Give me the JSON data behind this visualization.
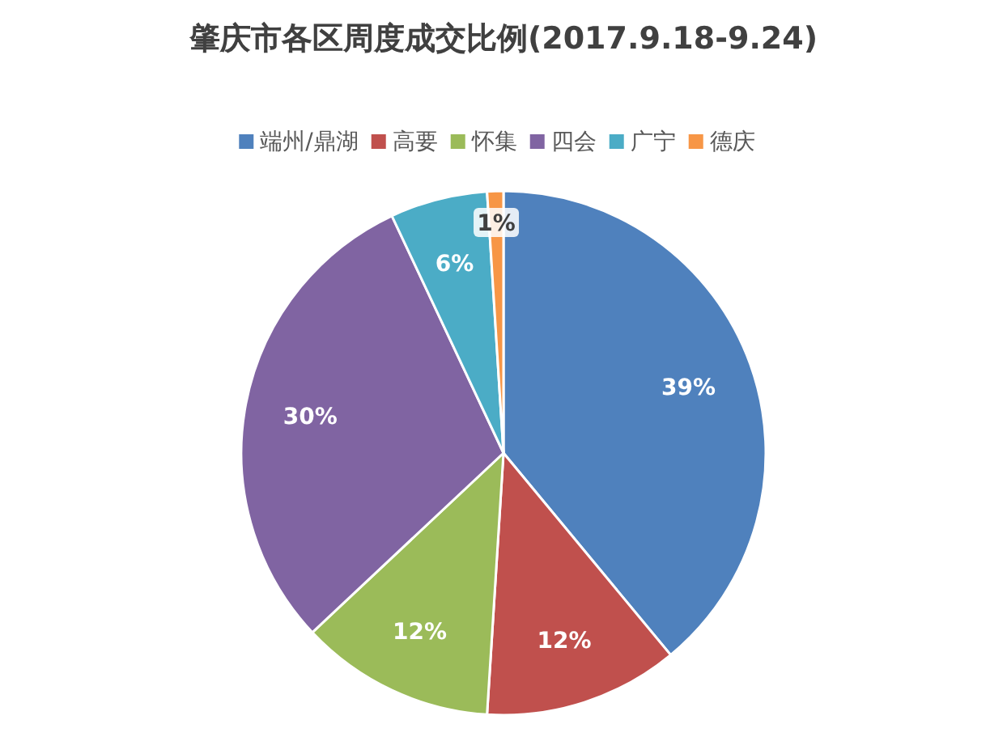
{
  "chart_data": {
    "type": "pie",
    "title": "肇庆市各区周度成交比例(2017.9.18-9.24)",
    "categories": [
      "端州/鼎湖",
      "高要",
      "怀集",
      "四会",
      "广宁",
      "德庆"
    ],
    "values": [
      39,
      12,
      12,
      30,
      6,
      1
    ],
    "colors": [
      "#4f81bd",
      "#c0504d",
      "#9bbb59",
      "#8064a2",
      "#4bacc6",
      "#f79646"
    ],
    "value_labels": [
      "39%",
      "12%",
      "12%",
      "30%",
      "6%",
      "1%"
    ],
    "legend": "top"
  }
}
